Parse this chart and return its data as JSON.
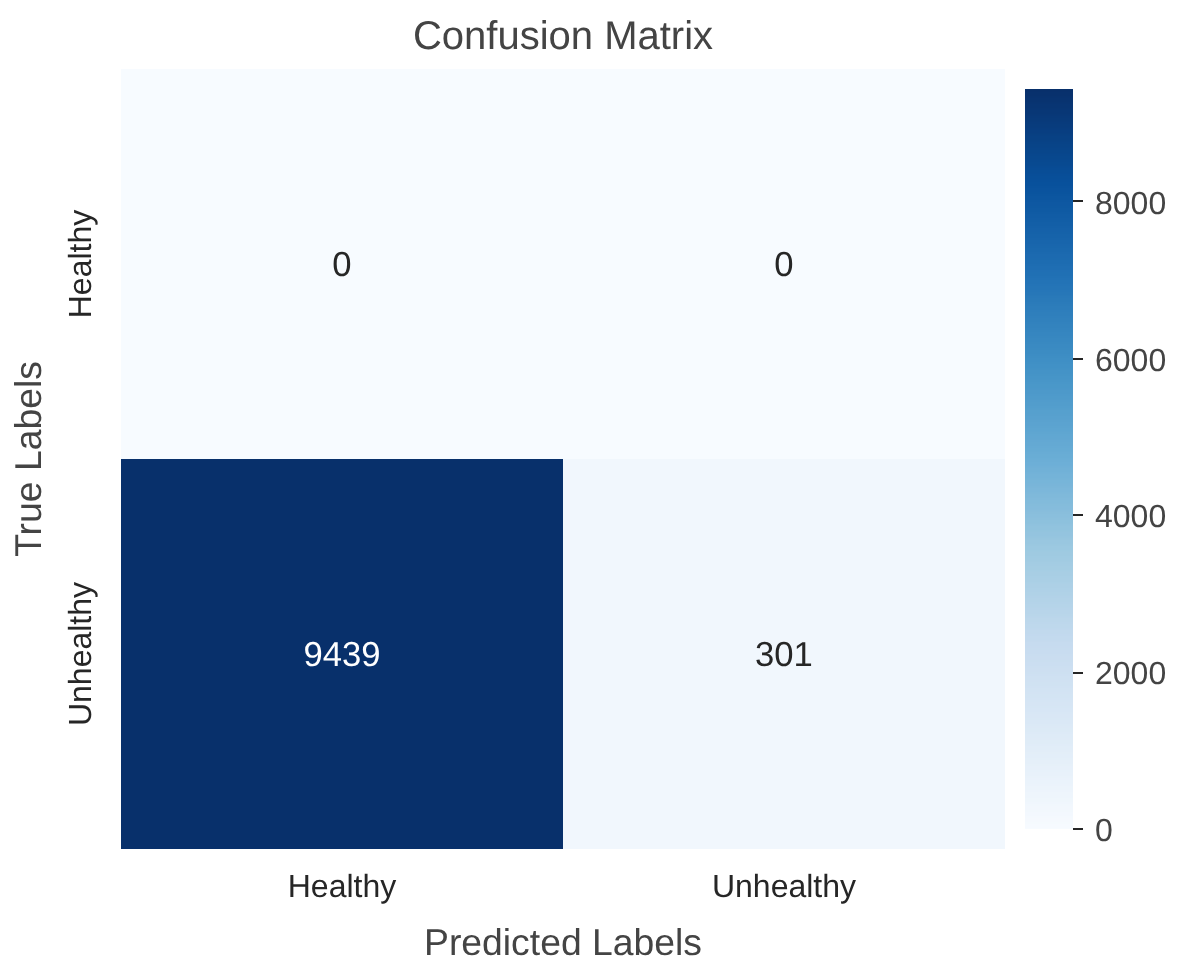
{
  "chart_data": {
    "type": "heatmap",
    "title": "Confusion Matrix",
    "xlabel": "Predicted Labels",
    "ylabel": "True Labels",
    "categories": [
      "Healthy",
      "Unhealthy"
    ],
    "y_categories": [
      "Healthy",
      "Unhealthy"
    ],
    "cells": [
      [
        0,
        0
      ],
      [
        9439,
        301
      ]
    ],
    "clim": [
      0,
      9439
    ],
    "cticks": [
      0,
      2000,
      4000,
      6000,
      8000
    ],
    "data_labels": true
  }
}
